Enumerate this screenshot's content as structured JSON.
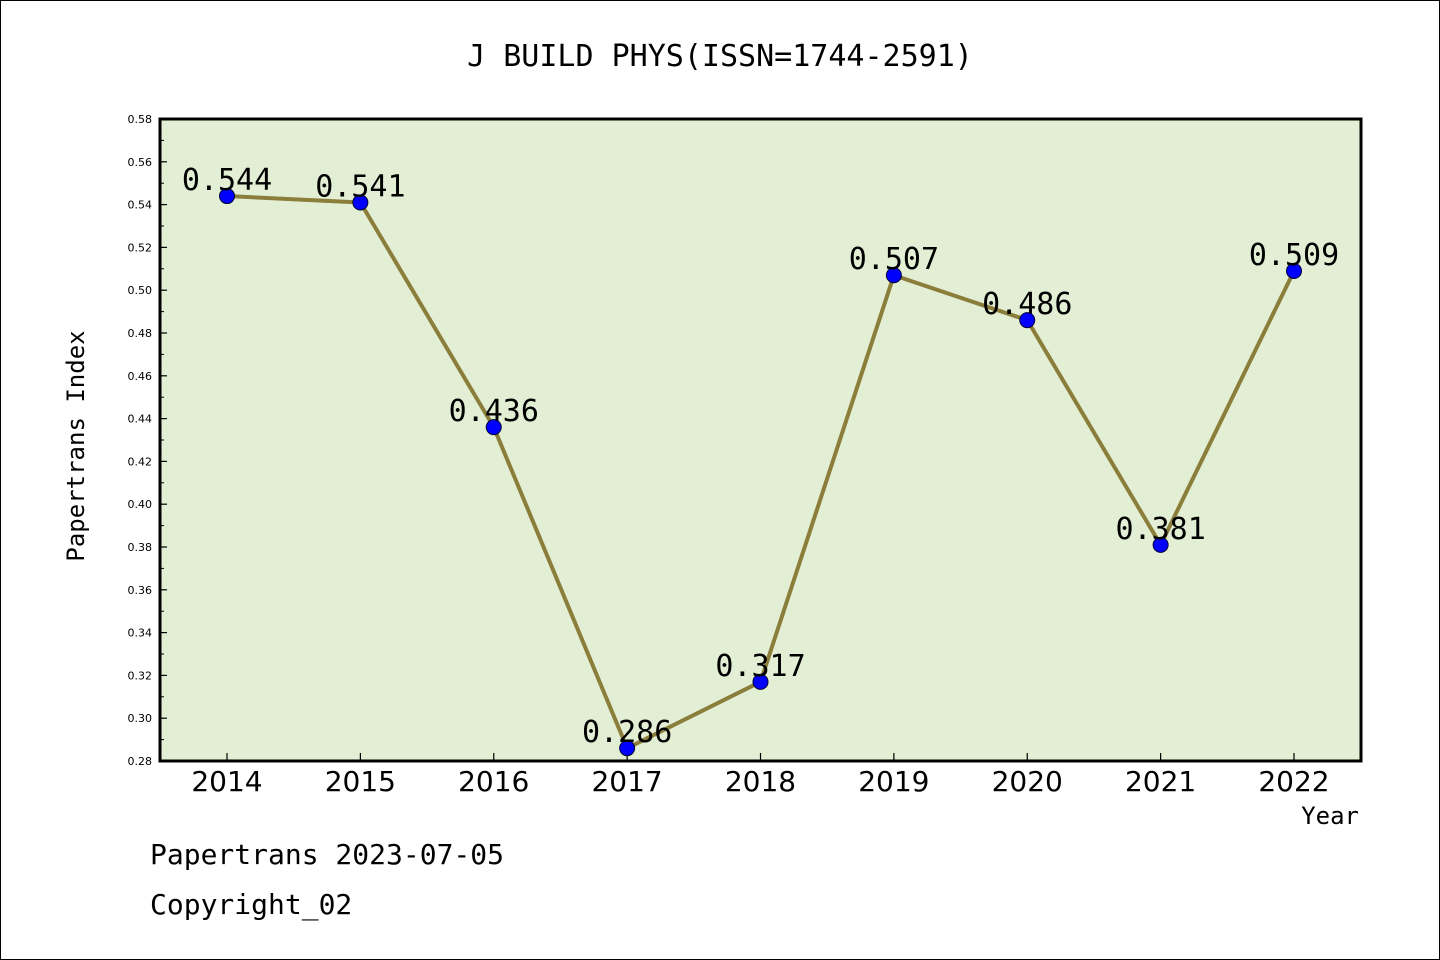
{
  "chart_data": {
    "type": "line",
    "title": "J BUILD PHYS(ISSN=1744-2591)",
    "xlabel": "Year",
    "ylabel": "Papertrans Index",
    "categories": [
      "2014",
      "2015",
      "2016",
      "2017",
      "2018",
      "2019",
      "2020",
      "2021",
      "2022"
    ],
    "values": [
      0.544,
      0.541,
      0.436,
      0.286,
      0.317,
      0.507,
      0.486,
      0.381,
      0.509
    ],
    "data_labels": [
      "0.544",
      "0.541",
      "0.436",
      "0.286",
      "0.317",
      "0.507",
      "0.486",
      "0.381",
      "0.509"
    ],
    "ylim": [
      0.28,
      0.58
    ],
    "yticks": [
      0.28,
      0.3,
      0.32,
      0.34,
      0.36,
      0.38,
      0.4,
      0.42,
      0.44,
      0.46,
      0.48,
      0.5,
      0.52,
      0.54,
      0.56,
      0.58
    ],
    "ytick_labels": [
      "0.28",
      "0.30",
      "0.32",
      "0.34",
      "0.36",
      "0.38",
      "0.40",
      "0.42",
      "0.44",
      "0.46",
      "0.48",
      "0.50",
      "0.52",
      "0.54",
      "0.56",
      "0.58"
    ],
    "grid": false,
    "legend": "none",
    "colors": {
      "plot_background": "#e2efd5",
      "line": "#8b7d3a",
      "marker": "#0000ff"
    }
  },
  "footer": {
    "line1": "Papertrans 2023-07-05",
    "line2": "Copyright_02"
  }
}
